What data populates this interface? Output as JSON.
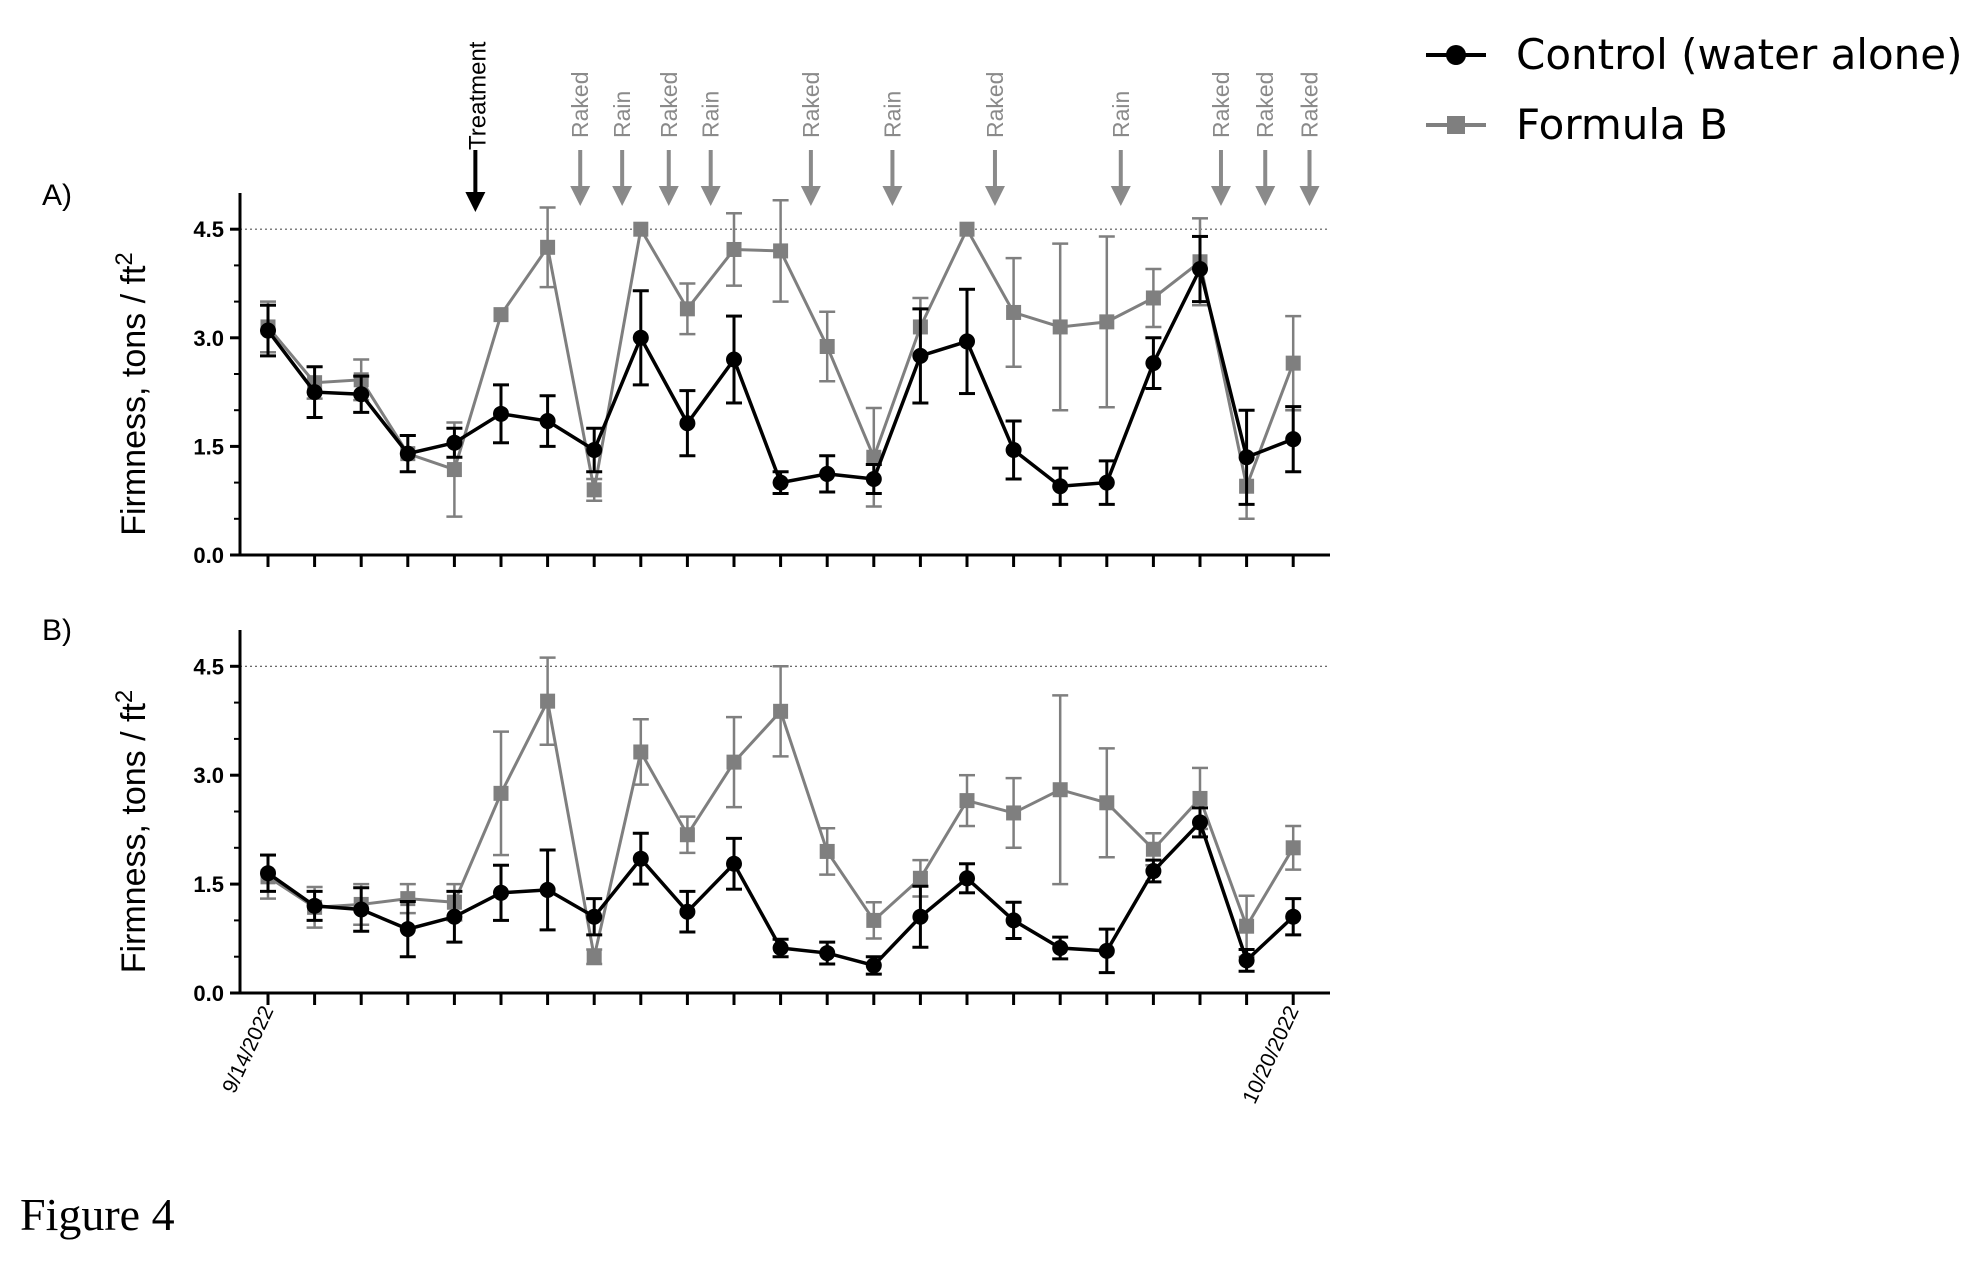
{
  "figure_caption": "Figure 4",
  "legend": {
    "items": [
      {
        "label": "Control (water alone)",
        "color": "#000000",
        "marker": "circle"
      },
      {
        "label": "Formula B",
        "color": "#7f7f7f",
        "marker": "square"
      }
    ]
  },
  "x_tick_labels": {
    "first": "9/14/2022",
    "last": "10/20/2022"
  },
  "annotations": {
    "treatment": {
      "label": "Treatment",
      "x_index": 4.45
    },
    "events": [
      {
        "label": "Raked",
        "x_index": 6.7
      },
      {
        "label": "Rain",
        "x_index": 7.6
      },
      {
        "label": "Raked",
        "x_index": 8.6
      },
      {
        "label": "Rain",
        "x_index": 9.5
      },
      {
        "label": "Raked",
        "x_index": 11.65
      },
      {
        "label": "Rain",
        "x_index": 13.4
      },
      {
        "label": "Raked",
        "x_index": 15.6
      },
      {
        "label": "Rain",
        "x_index": 18.3
      },
      {
        "label": "Raked",
        "x_index": 20.45
      },
      {
        "label": "Raked",
        "x_index": 21.4
      },
      {
        "label": "Raked",
        "x_index": 22.35
      }
    ]
  },
  "colors": {
    "control": "#000000",
    "formula": "#7f7f7f",
    "event_arrow": "#8a8a8a",
    "treatment_arrow": "#000000"
  },
  "chart_data": [
    {
      "type": "line",
      "panel_label": "A)",
      "ylabel": "Firmness, tons / ft",
      "ylabel_sup": "2",
      "ylim": [
        0,
        5
      ],
      "yticks": [
        "0.0",
        "1.5",
        "3.0",
        "4.5"
      ],
      "reference_line": 4.5,
      "x_count": 23,
      "series": [
        {
          "name": "Control (water alone)",
          "values": [
            3.1,
            2.25,
            2.22,
            1.4,
            1.55,
            1.95,
            1.85,
            1.45,
            3.0,
            1.82,
            2.7,
            1.0,
            1.12,
            1.05,
            2.75,
            2.95,
            1.45,
            0.95,
            1.0,
            2.65,
            3.95,
            1.35,
            1.6
          ],
          "errors": [
            0.35,
            0.35,
            0.25,
            0.25,
            0.2,
            0.4,
            0.35,
            0.3,
            0.65,
            0.45,
            0.6,
            0.15,
            0.25,
            0.2,
            0.65,
            0.72,
            0.4,
            0.25,
            0.3,
            0.35,
            0.45,
            0.65,
            0.45
          ]
        },
        {
          "name": "Formula B",
          "values": [
            3.15,
            2.38,
            2.42,
            1.4,
            1.18,
            3.32,
            4.25,
            0.9,
            4.5,
            3.4,
            4.22,
            4.2,
            2.88,
            1.35,
            3.15,
            4.5,
            3.35,
            3.15,
            3.22,
            3.55,
            4.05,
            0.95,
            2.65
          ],
          "errors": [
            0.35,
            0.22,
            0.28,
            0.25,
            0.65,
            0.0,
            0.55,
            0.15,
            0.0,
            0.35,
            0.5,
            0.7,
            0.48,
            0.68,
            0.4,
            0.0,
            0.75,
            1.15,
            1.18,
            0.4,
            0.6,
            0.45,
            0.65
          ]
        }
      ]
    },
    {
      "type": "line",
      "panel_label": "B)",
      "ylabel": "Firmness, tons / ft",
      "ylabel_sup": "2",
      "ylim": [
        0,
        5
      ],
      "yticks": [
        "0.0",
        "1.5",
        "3.0",
        "4.5"
      ],
      "reference_line": 4.5,
      "x_count": 23,
      "series": [
        {
          "name": "Control (water alone)",
          "values": [
            1.65,
            1.2,
            1.15,
            0.88,
            1.05,
            1.38,
            1.42,
            1.05,
            1.85,
            1.12,
            1.78,
            0.62,
            0.55,
            0.38,
            1.05,
            1.58,
            1.0,
            0.62,
            0.58,
            1.68,
            2.35,
            0.45,
            1.05
          ],
          "errors": [
            0.25,
            0.2,
            0.3,
            0.38,
            0.35,
            0.38,
            0.55,
            0.25,
            0.35,
            0.28,
            0.35,
            0.12,
            0.15,
            0.12,
            0.42,
            0.2,
            0.25,
            0.15,
            0.3,
            0.15,
            0.2,
            0.15,
            0.25
          ]
        },
        {
          "name": "Formula B",
          "values": [
            1.6,
            1.18,
            1.22,
            1.3,
            1.25,
            2.75,
            4.02,
            0.5,
            3.32,
            2.18,
            3.18,
            3.88,
            1.95,
            1.0,
            1.58,
            2.65,
            2.48,
            2.8,
            2.62,
            1.98,
            2.68,
            0.92,
            2.0
          ],
          "errors": [
            0.3,
            0.28,
            0.28,
            0.2,
            0.25,
            0.85,
            0.6,
            0.1,
            0.45,
            0.25,
            0.62,
            0.62,
            0.32,
            0.25,
            0.25,
            0.35,
            0.48,
            1.3,
            0.75,
            0.22,
            0.42,
            0.42,
            0.3
          ]
        }
      ]
    }
  ]
}
